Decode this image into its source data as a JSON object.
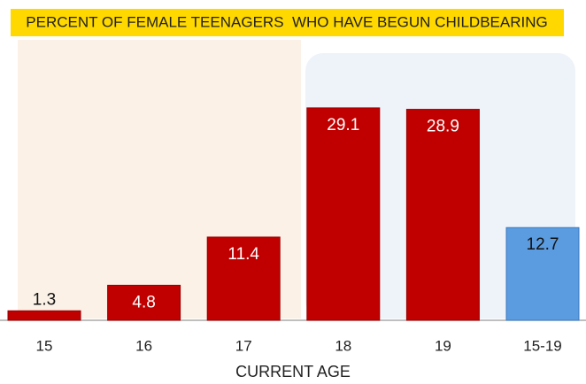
{
  "chart_data": {
    "type": "bar",
    "title": "PERCENT OF FEMALE TEENAGERS  WHO HAVE BEGUN CHILDBEARING",
    "xlabel": "CURRENT AGE",
    "categories": [
      "15",
      "16",
      "17",
      "18",
      "19",
      "15-19"
    ],
    "values": [
      1.3,
      4.8,
      11.4,
      29.1,
      28.9,
      12.7
    ],
    "colors": [
      "#c00000",
      "#c00000",
      "#c00000",
      "#c00000",
      "#c00000",
      "#5b9be0"
    ],
    "ylim": [
      0,
      30
    ]
  }
}
